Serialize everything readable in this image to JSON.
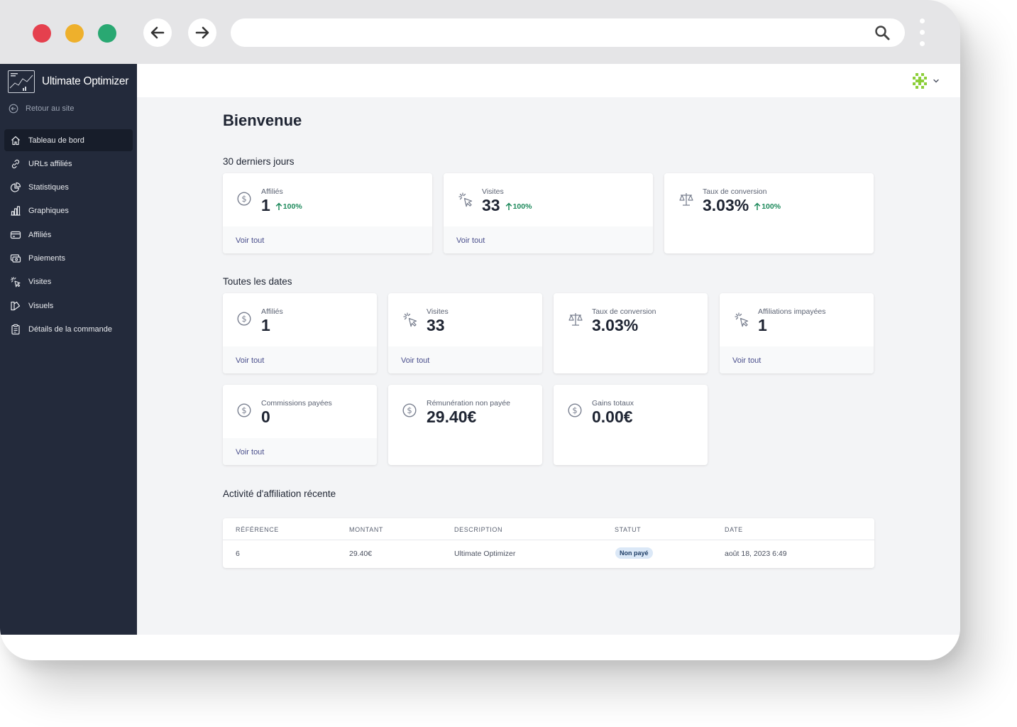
{
  "browser": {
    "url": "",
    "colors": {
      "close": "#e5404e",
      "minimize": "#eeb02c",
      "maximize": "#29a872"
    }
  },
  "sidebar": {
    "app_name": "Ultimate Optimizer",
    "back_link": "Retour au site",
    "items": [
      {
        "label": "Tableau de bord",
        "icon": "home-icon",
        "active": true
      },
      {
        "label": "URLs affiliés",
        "icon": "link-icon",
        "active": false
      },
      {
        "label": "Statistiques",
        "icon": "pie-chart-icon",
        "active": false
      },
      {
        "label": "Graphiques",
        "icon": "bar-chart-icon",
        "active": false
      },
      {
        "label": "Affiliés",
        "icon": "card-icon",
        "active": false
      },
      {
        "label": "Paiements",
        "icon": "payment-icon",
        "active": false
      },
      {
        "label": "Visites",
        "icon": "cursor-click-icon",
        "active": false
      },
      {
        "label": "Visuels",
        "icon": "visuals-icon",
        "active": false
      },
      {
        "label": "Détails de la commande",
        "icon": "clipboard-icon",
        "active": false
      }
    ]
  },
  "main": {
    "title": "Bienvenue",
    "last30": {
      "title": "30 derniers jours",
      "cards": [
        {
          "label": "Affiliés",
          "value": "1",
          "trend": "100%",
          "link": "Voir tout",
          "icon": "dollar-icon"
        },
        {
          "label": "Visites",
          "value": "33",
          "trend": "100%",
          "link": "Voir tout",
          "icon": "cursor-click-icon"
        },
        {
          "label": "Taux de conversion",
          "value": "3.03%",
          "trend": "100%",
          "icon": "scale-icon"
        }
      ]
    },
    "alltime": {
      "title": "Toutes les dates",
      "cards": [
        {
          "label": "Affiliés",
          "value": "1",
          "link": "Voir tout",
          "icon": "dollar-icon"
        },
        {
          "label": "Visites",
          "value": "33",
          "link": "Voir tout",
          "icon": "cursor-click-icon"
        },
        {
          "label": "Taux de conversion",
          "value": "3.03%",
          "icon": "scale-icon"
        },
        {
          "label": "Affiliations impayées",
          "value": "1",
          "link": "Voir tout",
          "icon": "cursor-click-icon"
        },
        {
          "label": "Commissions payées",
          "value": "0",
          "link": "Voir tout",
          "icon": "dollar-icon"
        },
        {
          "label": "Rémunération non payée",
          "value": "29.40€",
          "icon": "dollar-icon"
        },
        {
          "label": "Gains totaux",
          "value": "0.00€",
          "icon": "dollar-icon"
        }
      ]
    },
    "recent": {
      "title": "Activité d'affiliation récente",
      "columns": [
        "RÉFÉRENCE",
        "MONTANT",
        "DESCRIPTION",
        "STATUT",
        "DATE"
      ],
      "rows": [
        {
          "reference": "6",
          "amount": "29.40€",
          "description": "Ultimate Optimizer",
          "status": "Non payé",
          "date": "août 18, 2023 6:49"
        }
      ]
    }
  }
}
